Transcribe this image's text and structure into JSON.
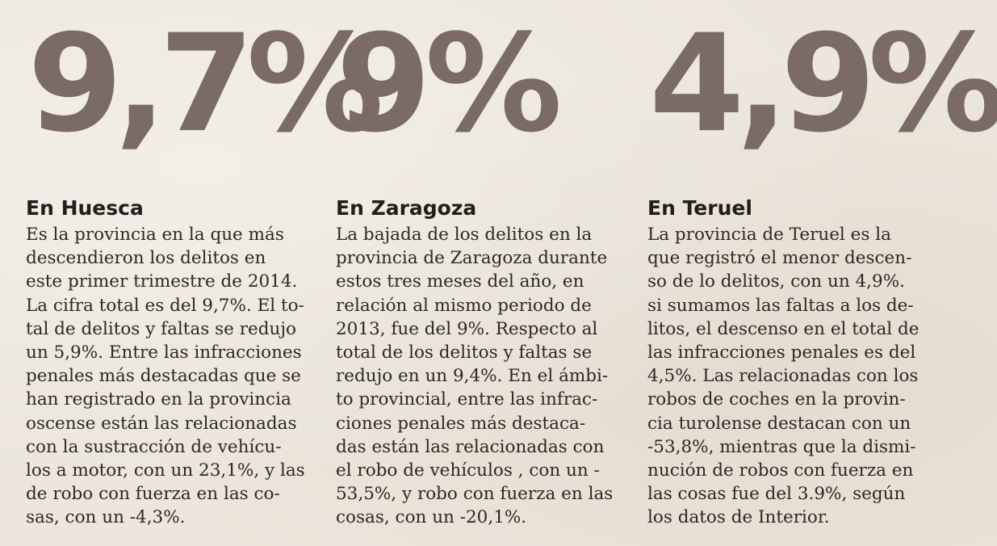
{
  "columns": [
    {
      "figure": "9,7%",
      "heading": "En Huesca",
      "lines": [
        "Es la provincia en la que más",
        "descendieron los delitos en",
        "este primer trimestre de 2014.",
        "La cifra total es del 9,7%. El to-",
        "tal de delitos y faltas se redujo",
        "un 5,9%. Entre las infracciones",
        "penales más destacadas que se",
        "han registrado en la provincia",
        "oscense están las relacionadas",
        "con la sustracción de vehícu-",
        "los a motor, con un 23,1%, y las",
        "de robo con fuerza en las co-",
        "sas, con un -4,3%."
      ]
    },
    {
      "figure": "9%",
      "heading": "En Zaragoza",
      "lines": [
        "La bajada de los delitos en la",
        "provincia de Zaragoza durante",
        "estos tres meses del año, en",
        "relación al mismo periodo de",
        "2013, fue del 9%. Respecto al",
        "total de los delitos y faltas se",
        "redujo en un 9,4%. En el ámbi-",
        "to provincial, entre las infrac-",
        "ciones penales más destaca-",
        "das están las relacionadas con",
        "el robo de vehículos , con un -",
        "53,5%, y robo con fuerza en las",
        "cosas, con un -20,1%."
      ]
    },
    {
      "figure": "4,9%",
      "heading": "En Teruel",
      "lines": [
        "La provincia de Teruel es la",
        "que registró el menor descen-",
        "so de lo delitos, con un 4,9%.",
        "si sumamos las faltas a los de-",
        "litos, el descenso en el total de",
        "las infracciones penales es del",
        "4,5%. Las relacionadas con los",
        "robos de coches en la provin-",
        "cia turolense destacan con un",
        "-53,8%, mientras que la dismi-",
        "nución de robos con fuerza en",
        "las cosas fue del 3.9%, según",
        "los datos de Interior."
      ]
    }
  ]
}
